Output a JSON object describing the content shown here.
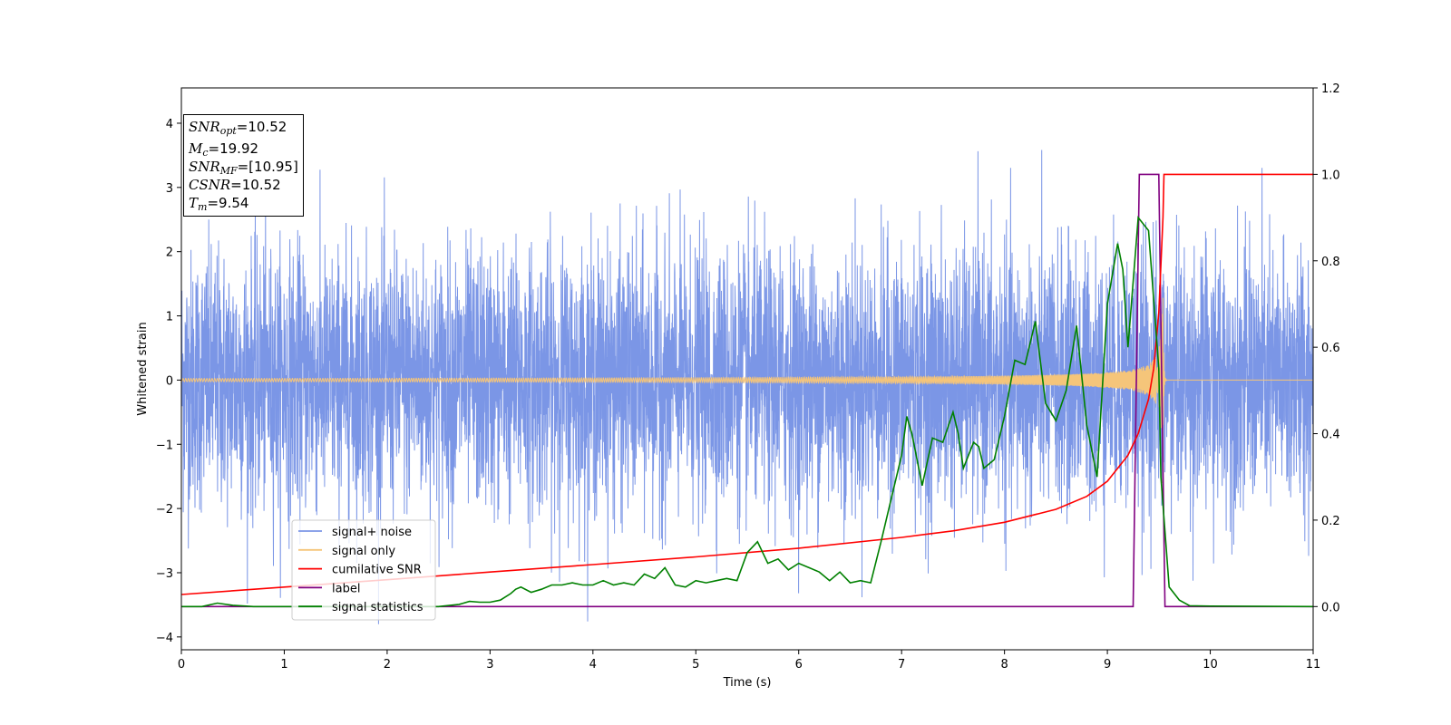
{
  "chart_data": {
    "type": "line",
    "xlabel": "Time (s)",
    "ylabel": "Whitened strain",
    "xlim": [
      0,
      11
    ],
    "ylim": [
      -4.2,
      4.55
    ],
    "y2lim": [
      -0.1,
      1.2
    ],
    "xticks": [
      "0",
      "1",
      "2",
      "3",
      "4",
      "5",
      "6",
      "7",
      "8",
      "9",
      "10",
      "11"
    ],
    "yticks": [
      "−4",
      "−3",
      "−2",
      "−1",
      "0",
      "1",
      "2",
      "3",
      "4"
    ],
    "y2ticks": [
      "0.0",
      "0.2",
      "0.4",
      "0.6",
      "0.8",
      "1.0",
      "1.2"
    ],
    "legend_position": "lower-left",
    "annotation": {
      "snr_opt": {
        "sym": "SNR",
        "sub": "opt",
        "value": "=10.52"
      },
      "mc": {
        "sym": "M",
        "sub": "c",
        "value": "=19.92"
      },
      "snr_mf": {
        "sym": "SNR",
        "sub": "MF",
        "value": "=[10.95]"
      },
      "csnr": {
        "sym": "CSNR",
        "value": "=10.52"
      },
      "tm": {
        "sym": "T",
        "sub": "m",
        "value": "=9.54"
      }
    },
    "series": [
      {
        "name": "signal+ noise",
        "color": "#7b96e6",
        "axis": "left",
        "amplitude_std": 1.0,
        "range": [
          -3.8,
          4.2
        ]
      },
      {
        "name": "signal only",
        "color": "#f5c57a",
        "axis": "left",
        "merger_time": 9.54,
        "peak_amplitude": 1.75
      },
      {
        "name": "cumilative SNR",
        "color": "#ff0000",
        "axis": "right",
        "x": [
          0,
          1,
          2,
          3,
          4,
          5,
          6,
          7,
          7.5,
          8,
          8.5,
          8.8,
          9.0,
          9.2,
          9.3,
          9.4,
          9.45,
          9.5,
          9.54,
          9.55,
          11
        ],
        "y": [
          0.028,
          0.045,
          0.062,
          0.08,
          0.097,
          0.115,
          0.135,
          0.16,
          0.175,
          0.195,
          0.225,
          0.255,
          0.29,
          0.35,
          0.4,
          0.48,
          0.55,
          0.68,
          0.9,
          1.0,
          1.0
        ]
      },
      {
        "name": "label",
        "color": "#800080",
        "axis": "right",
        "x": [
          0,
          9.25,
          9.31,
          9.5,
          9.56,
          11
        ],
        "y": [
          0,
          0,
          1.0,
          1.0,
          0,
          0
        ]
      },
      {
        "name": "signal statistics",
        "color": "#008000",
        "axis": "right",
        "x": [
          0,
          0.2,
          0.35,
          0.5,
          0.7,
          1,
          2,
          2.5,
          2.7,
          2.8,
          2.9,
          3.0,
          3.1,
          3.2,
          3.25,
          3.3,
          3.4,
          3.5,
          3.6,
          3.7,
          3.8,
          3.9,
          4.0,
          4.1,
          4.2,
          4.3,
          4.4,
          4.5,
          4.6,
          4.7,
          4.8,
          4.9,
          5.0,
          5.1,
          5.2,
          5.3,
          5.4,
          5.5,
          5.6,
          5.7,
          5.8,
          5.9,
          6.0,
          6.1,
          6.2,
          6.3,
          6.4,
          6.5,
          6.6,
          6.7,
          6.8,
          6.9,
          7.0,
          7.05,
          7.1,
          7.2,
          7.3,
          7.4,
          7.5,
          7.55,
          7.6,
          7.7,
          7.75,
          7.8,
          7.9,
          8.0,
          8.1,
          8.2,
          8.3,
          8.4,
          8.5,
          8.6,
          8.7,
          8.8,
          8.9,
          9.0,
          9.1,
          9.15,
          9.2,
          9.3,
          9.4,
          9.5,
          9.52,
          9.6,
          9.7,
          9.8,
          10,
          11
        ],
        "y": [
          0,
          0,
          0.008,
          0.003,
          0.0,
          0.0,
          0.0,
          0.0,
          0.005,
          0.012,
          0.01,
          0.01,
          0.015,
          0.03,
          0.04,
          0.045,
          0.033,
          0.04,
          0.05,
          0.05,
          0.055,
          0.05,
          0.05,
          0.06,
          0.05,
          0.055,
          0.05,
          0.075,
          0.065,
          0.09,
          0.05,
          0.045,
          0.06,
          0.055,
          0.06,
          0.065,
          0.06,
          0.125,
          0.15,
          0.1,
          0.11,
          0.085,
          0.1,
          0.09,
          0.08,
          0.06,
          0.08,
          0.055,
          0.06,
          0.055,
          0.15,
          0.25,
          0.35,
          0.44,
          0.4,
          0.28,
          0.39,
          0.38,
          0.45,
          0.4,
          0.32,
          0.38,
          0.37,
          0.32,
          0.34,
          0.44,
          0.57,
          0.56,
          0.66,
          0.47,
          0.43,
          0.5,
          0.65,
          0.42,
          0.3,
          0.7,
          0.84,
          0.78,
          0.6,
          0.9,
          0.87,
          0.55,
          0.3,
          0.045,
          0.015,
          0.002,
          0.001,
          0.0
        ]
      }
    ]
  }
}
